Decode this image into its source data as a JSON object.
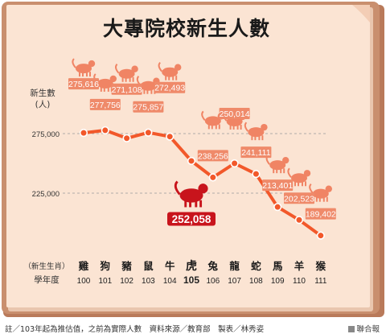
{
  "title": "大專院校新生人數",
  "colors": {
    "page_bg": "#fbe4d3",
    "cover": "#c98f6e",
    "line": "#f2582a",
    "label_box": "#ef8a6a",
    "highlight": "#c8141c",
    "zodiac_icon": "#f08464"
  },
  "chart_data": {
    "type": "line",
    "title": "大專院校新生人數",
    "ylabel": "新生數\n(人)",
    "yticks": [
      275000,
      225000
    ],
    "ytick_labels": [
      "275,000",
      "225,000"
    ],
    "ylim": [
      180000,
      300000
    ],
    "grid": true,
    "row_labels": [
      "（新生生肖）",
      "學年度"
    ],
    "zodiac": [
      "雞",
      "狗",
      "豬",
      "鼠",
      "牛",
      "虎",
      "兔",
      "龍",
      "蛇",
      "馬",
      "羊",
      "猴"
    ],
    "x": [
      "100",
      "101",
      "102",
      "103",
      "104",
      "105",
      "106",
      "107",
      "108",
      "109",
      "110",
      "111"
    ],
    "values": [
      275616,
      277756,
      271108,
      275857,
      272493,
      252058,
      238256,
      250014,
      241111,
      213401,
      202523,
      189402
    ],
    "value_labels": [
      "275,616",
      "277,756",
      "271,108",
      "275,857",
      "272,493",
      "252,058",
      "238,256",
      "250,014",
      "241,111",
      "213,401",
      "202,523",
      "189,402"
    ],
    "highlight_index": 5,
    "zodiac_icons": [
      "rooster-icon",
      "dog-icon",
      "pig-icon",
      "rat-icon",
      "ox-icon",
      "tiger-icon",
      "rabbit-icon",
      "dragon-icon",
      "snake-icon",
      "horse-icon",
      "goat-icon",
      "monkey-icon"
    ]
  },
  "footer": {
    "note": "註／103年起為推估值，之前為實際人數　資料來源／教育部　製表／林秀姿",
    "credit": "聯合報"
  }
}
